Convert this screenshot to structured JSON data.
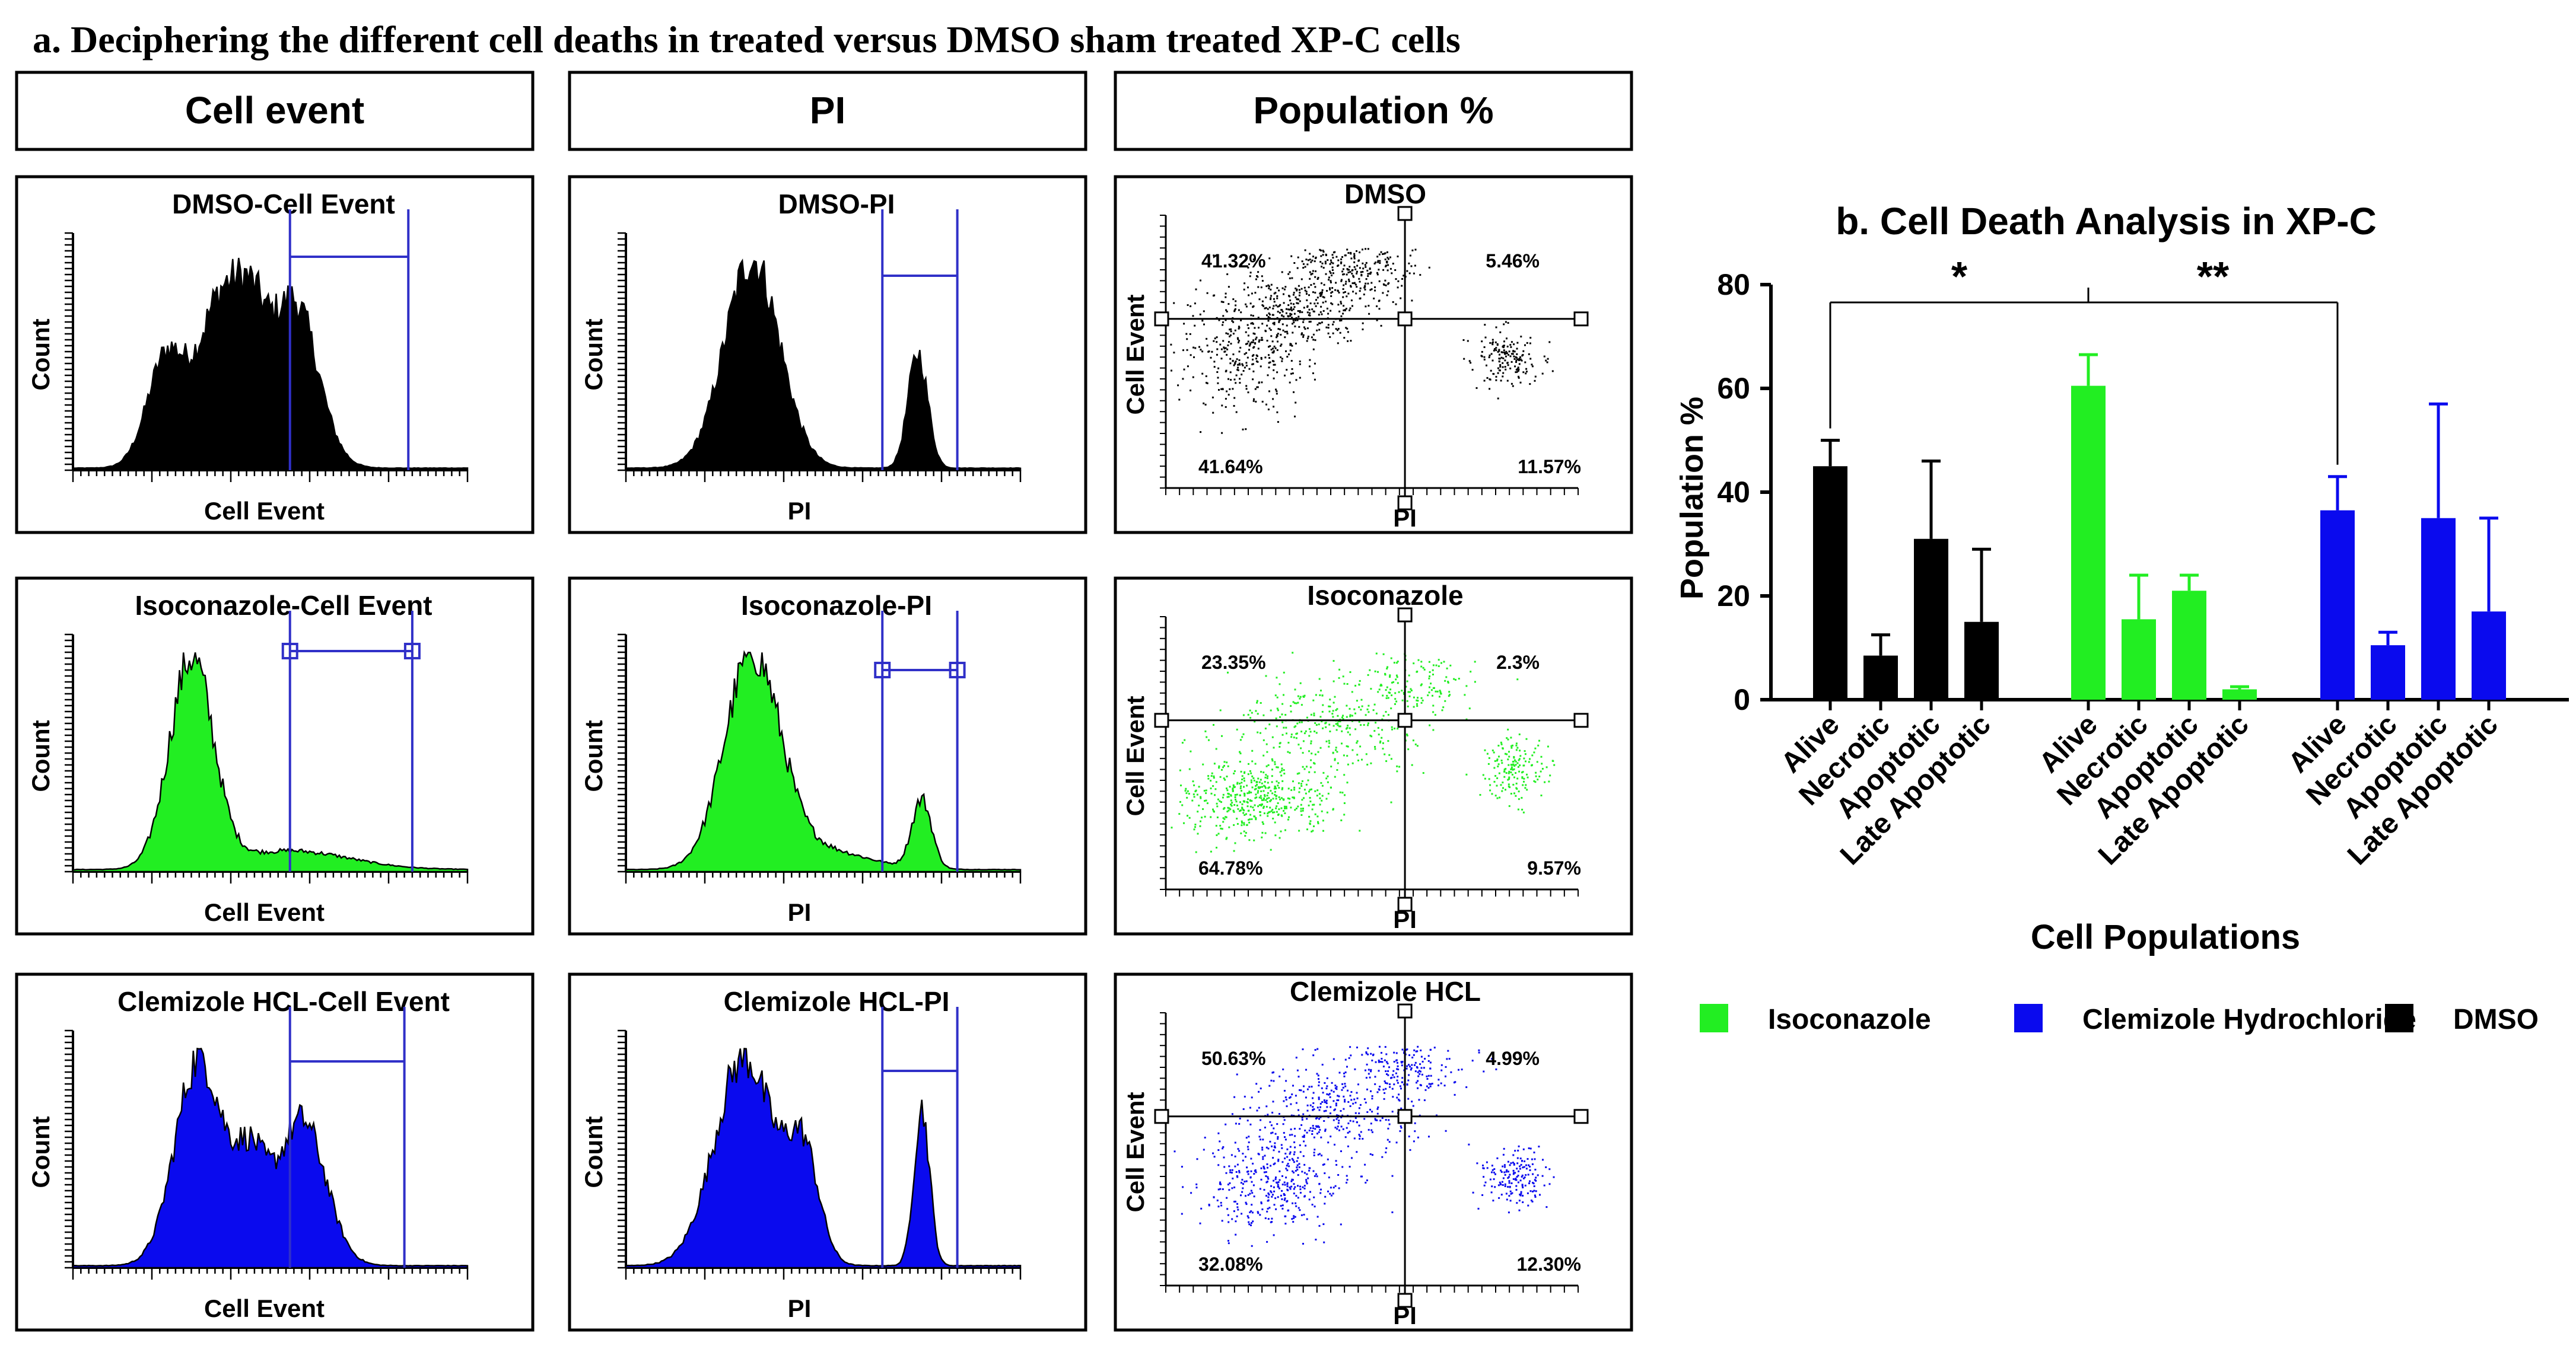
{
  "figure_title": "a. Deciphering the different cell deaths in treated versus DMSO sham treated XP-C cells",
  "headers": {
    "cell_event": "Cell event",
    "pi": "PI",
    "population": "Population %"
  },
  "colors": {
    "dmso": "#000000",
    "isoconazole": "#22ee22",
    "clemizole": "#0a0aee",
    "gate": "#3030c8"
  },
  "histograms": {
    "rows": [
      {
        "cell_event_title": "DMSO-Cell Event",
        "pi_title": "DMSO-PI"
      },
      {
        "cell_event_title": "Isoconazole-Cell Event",
        "pi_title": "Isoconazole-PI"
      },
      {
        "cell_event_title": "Clemizole HCL-Cell Event",
        "pi_title": "Clemizole HCL-PI"
      }
    ],
    "y_label": "Count",
    "x_label_cell_event": "Cell Event",
    "x_label_pi": "PI"
  },
  "scatter_plots": [
    {
      "title": "DMSO",
      "q_ul": "41.32%",
      "q_ur": "5.46%",
      "q_ll": "41.64%",
      "q_lr": "11.57%"
    },
    {
      "title": "Isoconazole",
      "q_ul": "23.35%",
      "q_ur": "2.3%",
      "q_ll": "64.78%",
      "q_lr": "9.57%"
    },
    {
      "title": "Clemizole HCL",
      "q_ul": "50.63%",
      "q_ur": "4.99%",
      "q_ll": "32.08%",
      "q_lr": "12.30%"
    }
  ],
  "scatter_axes": {
    "x_label": "PI",
    "y_label": "Cell Event"
  },
  "chart_data": {
    "type": "bar",
    "title": "b. Cell Death Analysis in XP-C",
    "xlabel": "Cell Populations",
    "ylabel": "Population %",
    "ylim": [
      0,
      80
    ],
    "yticks": [
      "0",
      "20",
      "40",
      "60",
      "80"
    ],
    "categories": [
      "Alive",
      "Necrotic",
      "Apoptotic",
      "Late Apoptotic"
    ],
    "series": [
      {
        "name": "DMSO",
        "values": [
          45,
          8.5,
          31,
          15
        ],
        "errors": [
          5,
          4,
          15,
          14
        ]
      },
      {
        "name": "Isoconazole",
        "values": [
          60.5,
          15.5,
          21,
          2
        ],
        "errors": [
          6,
          8.5,
          3,
          0.5
        ]
      },
      {
        "name": "Clemizole Hydrochloride",
        "values": [
          36.5,
          10.5,
          35,
          17
        ],
        "errors": [
          6.5,
          2.5,
          22,
          18
        ]
      }
    ],
    "significance": [
      {
        "label": "*",
        "from": "DMSO Alive",
        "to": "Isoconazole Alive"
      },
      {
        "label": "**",
        "from": "Isoconazole Alive",
        "to": "Clemizole Hydrochloride Alive"
      }
    ]
  },
  "legend": [
    {
      "label": "Isoconazole",
      "color": "#22ee22"
    },
    {
      "label": "Clemizole Hydrochloride",
      "color": "#0a0aee"
    },
    {
      "label": "DMSO",
      "color": "#000000"
    }
  ]
}
